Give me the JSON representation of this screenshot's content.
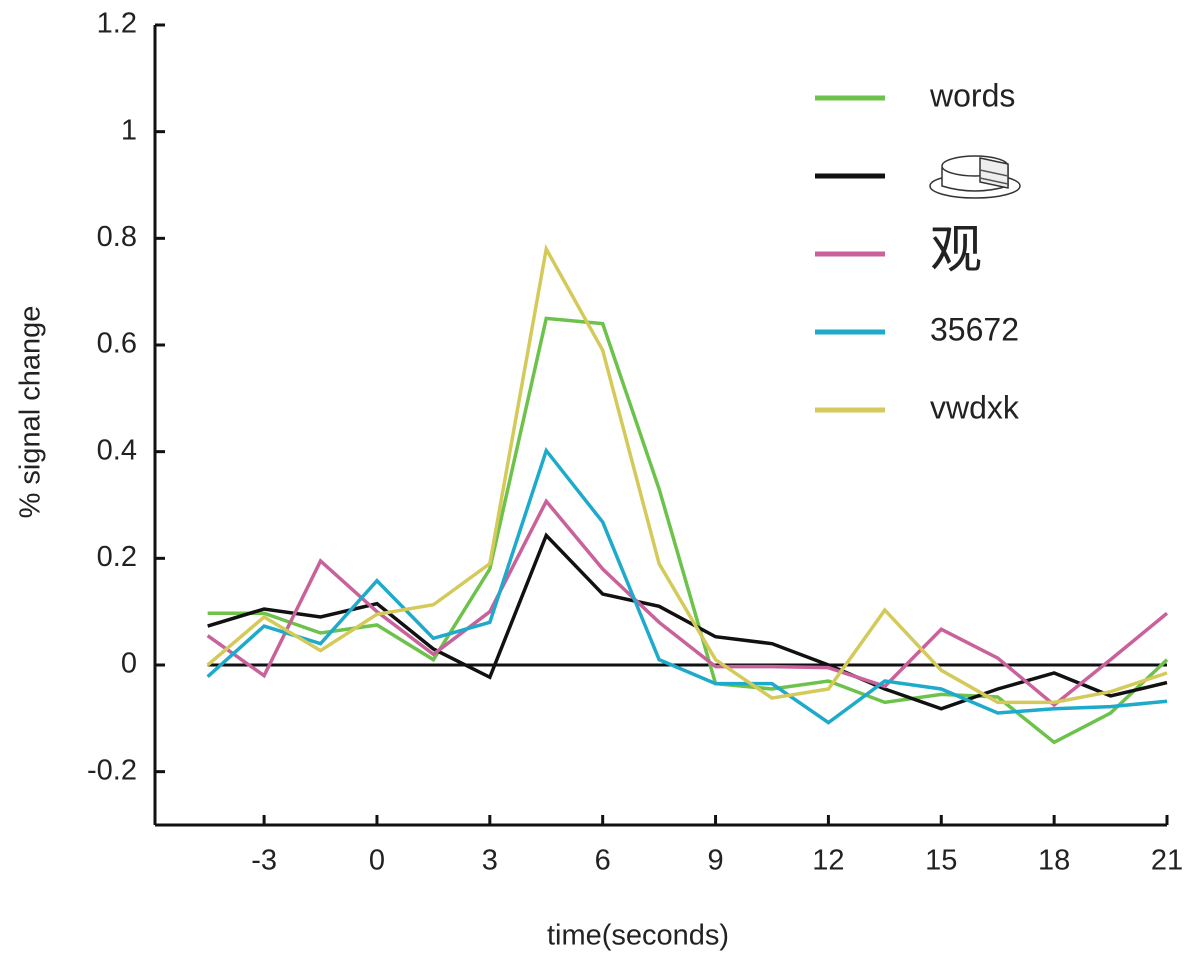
{
  "chart_data": {
    "type": "line",
    "x": [
      -4.5,
      -3,
      -1.5,
      0,
      1.5,
      3,
      4.5,
      6,
      7.5,
      9,
      10.5,
      12,
      13.5,
      15,
      16.5,
      18,
      19.5,
      21
    ],
    "xlabel": "time(seconds)",
    "ylabel": "% signal change",
    "xlim": [
      -5.9,
      21
    ],
    "ylim": [
      -0.3,
      1.2
    ],
    "xticks": [
      -3,
      0,
      3,
      6,
      9,
      12,
      15,
      18,
      21
    ],
    "yticks": [
      -0.2,
      0,
      0.2,
      0.4,
      0.6,
      0.8,
      1,
      1.2
    ],
    "series": [
      {
        "name": "words",
        "color": "#6cc24a",
        "values": [
          0.097,
          0.097,
          0.06,
          0.075,
          0.01,
          0.18,
          0.65,
          0.64,
          0.33,
          -0.035,
          -0.045,
          -0.03,
          -0.07,
          -0.055,
          -0.06,
          -0.145,
          -0.09,
          0.01
        ]
      },
      {
        "color": "#111111",
        "values": [
          0.073,
          0.105,
          0.09,
          0.115,
          0.03,
          -0.023,
          0.243,
          0.133,
          0.11,
          0.053,
          0.04,
          0.0,
          -0.045,
          -0.082,
          -0.045,
          -0.015,
          -0.058,
          -0.033
        ]
      },
      {
        "name": "观",
        "color": "#c9619b",
        "values": [
          0.055,
          -0.02,
          0.195,
          0.1,
          0.02,
          0.1,
          0.307,
          0.18,
          0.08,
          -0.003,
          -0.003,
          -0.005,
          -0.04,
          0.067,
          0.013,
          -0.075,
          0.01,
          0.097
        ]
      },
      {
        "name": "35672",
        "color": "#1eaacb",
        "values": [
          -0.022,
          0.073,
          0.04,
          0.158,
          0.05,
          0.08,
          0.402,
          0.268,
          0.01,
          -0.035,
          -0.035,
          -0.108,
          -0.03,
          -0.045,
          -0.09,
          -0.082,
          -0.078,
          -0.068
        ]
      },
      {
        "name": "vwdxk",
        "color": "#d4ca5a",
        "values": [
          0.0,
          0.09,
          0.027,
          0.095,
          0.113,
          0.19,
          0.78,
          0.59,
          0.19,
          0.01,
          -0.062,
          -0.045,
          0.103,
          -0.01,
          -0.07,
          -0.07,
          -0.05,
          -0.015
        ]
      }
    ]
  }
}
